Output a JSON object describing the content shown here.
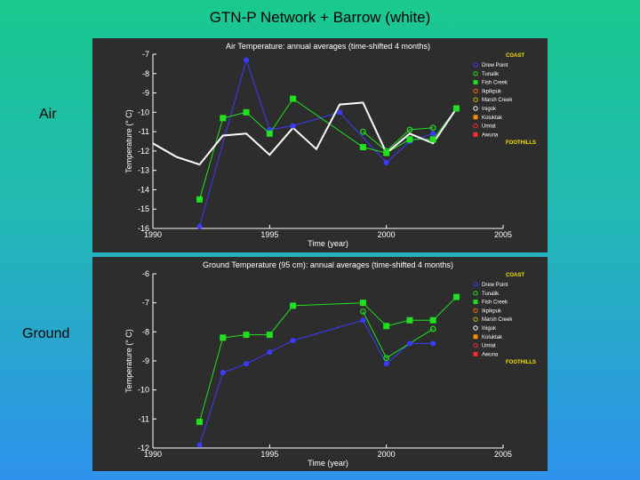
{
  "title": "GTN-P  Network + Barrow (white)",
  "labels": {
    "air": "Air",
    "ground": "Ground"
  },
  "colors": {
    "panel": "#2d2d2d",
    "axis": "#ffffff",
    "drew_point": "#3b3bff",
    "fish_creek": "#20e020",
    "barrow": "#ffffff",
    "region_label": "#f0e000",
    "legend_marker_colors": [
      "#3b3bff",
      "#20e020",
      "#20e020",
      "#ff6a00",
      "#c8b400",
      "#ffffff",
      "#ff8c00",
      "#ff2a2a",
      "#ff2a2a"
    ]
  },
  "legend": {
    "coast_label": "COAST",
    "foothills_label": "FOOTHILLS",
    "items": [
      "Drew Point",
      "Tunalik",
      "Fish Creek",
      "Ikpikpuk",
      "Marsh Creek",
      "Inigok",
      "Koluktak",
      "Umiat",
      "Awuna"
    ]
  },
  "chart_data": [
    {
      "type": "line",
      "title": "Air Temperature: annual averages (time-shifted 4 months)",
      "xlabel": "Time (year)",
      "ylabel": "Temperature (° C)",
      "xlim": [
        1990,
        2005
      ],
      "ylim": [
        -16,
        -7
      ],
      "xticks": [
        1990,
        1995,
        2000,
        2005
      ],
      "yticks": [
        -16,
        -15,
        -14,
        -13,
        -12,
        -11,
        -10,
        -9,
        -8,
        -7
      ],
      "series": [
        {
          "name": "Drew Point",
          "marker": "circle",
          "x": [
            1992,
            1994,
            1995,
            1996,
            1998,
            2000,
            2001,
            2002
          ],
          "y": [
            -15.9,
            -7.3,
            -10.9,
            -10.7,
            -10.0,
            -12.6,
            -11.5,
            -11.1
          ]
        },
        {
          "name": "Fish Creek",
          "marker": "square",
          "x": [
            1992,
            1993,
            1994,
            1995,
            1996,
            1999,
            2000,
            2001,
            2002,
            2003
          ],
          "y": [
            -14.5,
            -10.3,
            -10.0,
            -11.1,
            -9.3,
            -11.8,
            -12.1,
            -11.4,
            -11.4,
            -9.8
          ]
        },
        {
          "name": "Tunalik",
          "marker": "circle-open",
          "x": [
            1999,
            2000,
            2001,
            2002
          ],
          "y": [
            -11.0,
            -12.0,
            -10.9,
            -10.8
          ]
        },
        {
          "name": "Barrow",
          "marker": "none",
          "x": [
            1990,
            1991,
            1992,
            1993,
            1994,
            1995,
            1996,
            1997,
            1998,
            1999,
            2000,
            2001,
            2002,
            2003
          ],
          "y": [
            -11.6,
            -12.3,
            -12.7,
            -11.2,
            -11.1,
            -12.2,
            -10.8,
            -11.9,
            -9.6,
            -9.5,
            -12.1,
            -11.1,
            -11.6,
            -9.8
          ]
        }
      ]
    },
    {
      "type": "line",
      "title": "Ground Temperature (95 cm): annual averages (time-shifted 4 months)",
      "xlabel": "Time (year)",
      "ylabel": "Temperature (° C)",
      "xlim": [
        1990,
        2005
      ],
      "ylim": [
        -12,
        -6
      ],
      "xticks": [
        1990,
        1995,
        2000,
        2005
      ],
      "yticks": [
        -12,
        -11,
        -10,
        -9,
        -8,
        -7,
        -6
      ],
      "series": [
        {
          "name": "Drew Point",
          "marker": "circle",
          "x": [
            1992,
            1993,
            1994,
            1995,
            1996,
            1999,
            2000,
            2001,
            2002
          ],
          "y": [
            -11.9,
            -9.4,
            -9.1,
            -8.7,
            -8.3,
            -7.6,
            -9.1,
            -8.4,
            -8.4
          ]
        },
        {
          "name": "Fish Creek",
          "marker": "square",
          "x": [
            1992,
            1993,
            1994,
            1995,
            1996,
            1999,
            2000,
            2001,
            2002,
            2003
          ],
          "y": [
            -11.1,
            -8.2,
            -8.1,
            -8.1,
            -7.1,
            -7.0,
            -7.8,
            -7.6,
            -7.6,
            -6.8
          ]
        },
        {
          "name": "Tunalik",
          "marker": "circle-open",
          "x": [
            1999,
            2000,
            2002
          ],
          "y": [
            -7.3,
            -8.9,
            -7.9
          ]
        }
      ]
    }
  ]
}
